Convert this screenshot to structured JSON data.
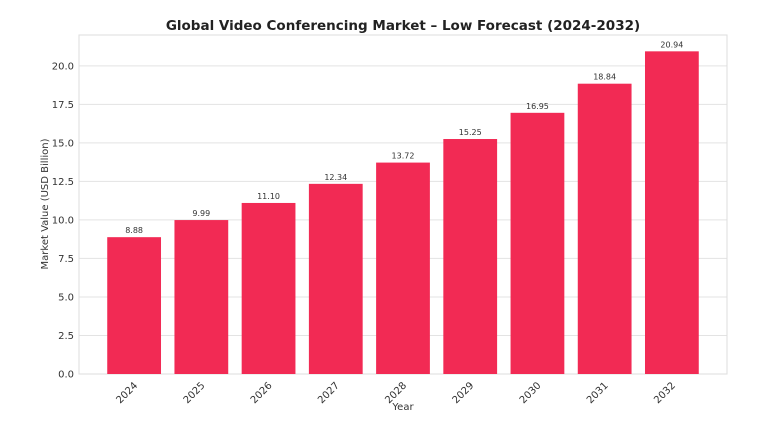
{
  "chart_data": {
    "type": "bar",
    "title": "Global Video Conferencing Market – Low Forecast (2024-2032)",
    "xlabel": "Year",
    "ylabel": "Market Value (USD Billion)",
    "categories": [
      "2024",
      "2025",
      "2026",
      "2027",
      "2028",
      "2029",
      "2030",
      "2031",
      "2032"
    ],
    "values": [
      8.88,
      9.99,
      11.1,
      12.34,
      13.72,
      15.25,
      16.95,
      18.84,
      20.94
    ],
    "data_labels": [
      "8.88",
      "9.99",
      "11.10",
      "12.34",
      "13.72",
      "15.25",
      "16.95",
      "18.84",
      "20.94"
    ],
    "ylim": [
      0,
      22
    ],
    "yticks": [
      "0.0",
      "2.5",
      "5.0",
      "7.5",
      "10.0",
      "12.5",
      "15.0",
      "17.5",
      "20.0"
    ],
    "grid": true,
    "bar_color": "#f22a54",
    "xtick_rotation": 45
  }
}
